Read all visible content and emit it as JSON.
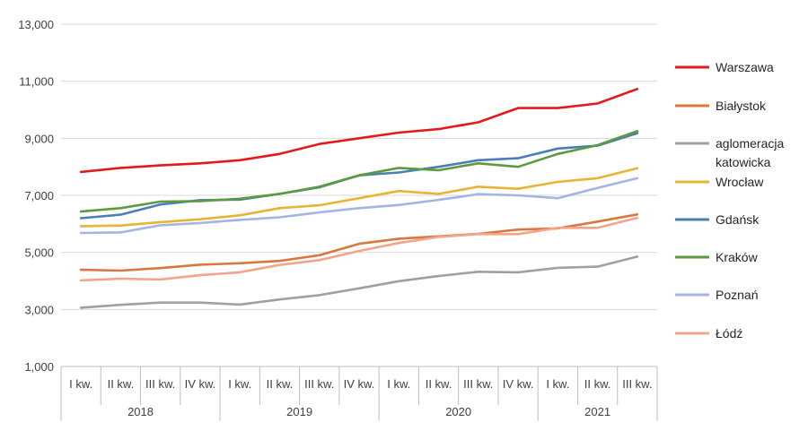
{
  "chart_data": {
    "type": "line",
    "title": "",
    "xlabel": "",
    "ylabel": "",
    "ylim": [
      1000,
      13000
    ],
    "yticks": [
      1000,
      3000,
      5000,
      7000,
      9000,
      11000,
      13000
    ],
    "ytick_labels": [
      "1,000",
      "3,000",
      "5,000",
      "7,000",
      "9,000",
      "11,000",
      "13,000"
    ],
    "grid": "horizontal",
    "legend_position": "right",
    "categories": [
      "I kw.",
      "II kw.",
      "III kw.",
      "IV kw.",
      "I kw.",
      "II kw.",
      "III kw.",
      "IV kw.",
      "I kw.",
      "II kw.",
      "III kw.",
      "IV kw.",
      "I kw.",
      "II kw.",
      "III kw."
    ],
    "year_groups": [
      {
        "label": "2018",
        "count": 4
      },
      {
        "label": "2019",
        "count": 4
      },
      {
        "label": "2020",
        "count": 4
      },
      {
        "label": "2021",
        "count": 3
      }
    ],
    "series": [
      {
        "name": "Warszawa",
        "color": "#e31a1c",
        "legend_lines": [
          "Warszawa"
        ],
        "values": [
          7820,
          7960,
          8050,
          8120,
          8230,
          8450,
          8800,
          9000,
          9200,
          9320,
          9560,
          10060,
          10060,
          10220,
          10730
        ]
      },
      {
        "name": "Białystok",
        "color": "#d9773f",
        "legend_lines": [
          "Białystok"
        ],
        "values": [
          4390,
          4360,
          4450,
          4570,
          4620,
          4700,
          4900,
          5300,
          5480,
          5560,
          5650,
          5800,
          5840,
          6080,
          6330
        ]
      },
      {
        "name": "aglomeracja katowicka",
        "color": "#a0a0a0",
        "legend_lines": [
          "aglomeracja",
          "katowicka"
        ],
        "values": [
          3060,
          3160,
          3240,
          3240,
          3170,
          3350,
          3500,
          3740,
          3990,
          4170,
          4320,
          4300,
          4460,
          4500,
          4850
        ]
      },
      {
        "name": "Wrocław",
        "color": "#e8b436",
        "legend_lines": [
          "Wrocław"
        ],
        "values": [
          5920,
          5940,
          6060,
          6160,
          6300,
          6550,
          6650,
          6900,
          7150,
          7050,
          7300,
          7230,
          7470,
          7600,
          7950
        ]
      },
      {
        "name": "Gdańsk",
        "color": "#4a7eb8",
        "legend_lines": [
          "Gdańsk"
        ],
        "values": [
          6200,
          6320,
          6680,
          6830,
          6850,
          7050,
          7280,
          7700,
          7800,
          8000,
          8230,
          8300,
          8640,
          8740,
          9180
        ]
      },
      {
        "name": "Kraków",
        "color": "#5b9b3e",
        "legend_lines": [
          "Kraków"
        ],
        "values": [
          6430,
          6550,
          6780,
          6800,
          6880,
          7050,
          7300,
          7700,
          7960,
          7880,
          8120,
          8000,
          8450,
          8760,
          9250
        ]
      },
      {
        "name": "Poznań",
        "color": "#a3b5e0",
        "legend_lines": [
          "Poznań"
        ],
        "values": [
          5680,
          5700,
          5950,
          6030,
          6140,
          6230,
          6400,
          6550,
          6660,
          6840,
          7040,
          7000,
          6900,
          7260,
          7600
        ]
      },
      {
        "name": "Łódź",
        "color": "#f2a58c",
        "legend_lines": [
          "Łódź"
        ],
        "values": [
          4020,
          4080,
          4050,
          4200,
          4300,
          4560,
          4730,
          5050,
          5330,
          5540,
          5640,
          5640,
          5860,
          5860,
          6210
        ]
      }
    ]
  }
}
